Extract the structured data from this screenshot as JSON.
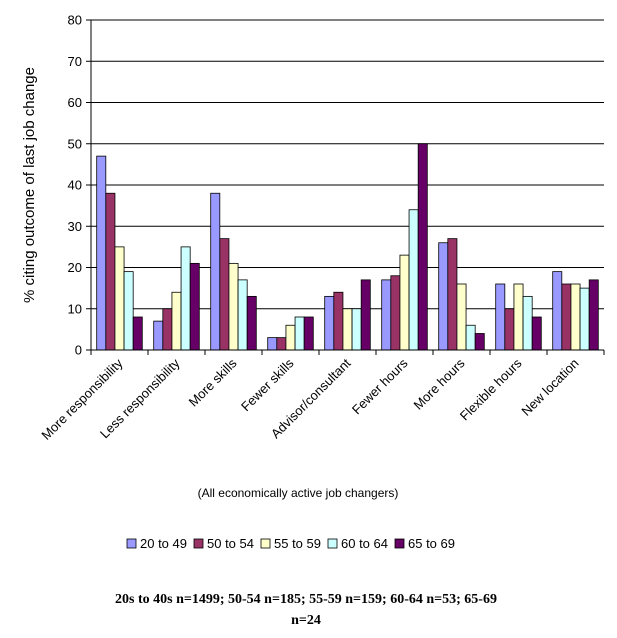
{
  "chart_data": {
    "type": "bar",
    "title": "",
    "xlabel": "(All economically active job changers)",
    "ylabel": "% citing outcome of last job change",
    "ylim": [
      0,
      80
    ],
    "yticks": [
      "0",
      "10",
      "20",
      "30",
      "40",
      "50",
      "60",
      "70",
      "80"
    ],
    "grid": true,
    "legend_position": "bottom",
    "categories": [
      "More responsibility",
      "Less responsibility",
      "More skills",
      "Fewer skills",
      "Advisor/consultant",
      "Fewer hours",
      "More hours",
      "Flexible hours",
      "New location"
    ],
    "series": [
      {
        "name": "20 to 49",
        "color": "#9999ff",
        "values": [
          47,
          7,
          38,
          3,
          13,
          17,
          26,
          16,
          19
        ]
      },
      {
        "name": "50 to 54",
        "color": "#993366",
        "values": [
          38,
          10,
          27,
          3,
          14,
          18,
          27,
          10,
          16
        ]
      },
      {
        "name": "55 to 59",
        "color": "#ffffcc",
        "values": [
          25,
          14,
          21,
          6,
          10,
          23,
          16,
          16,
          16
        ]
      },
      {
        "name": "60 to 64",
        "color": "#ccffff",
        "values": [
          19,
          25,
          17,
          8,
          10,
          34,
          6,
          13,
          15
        ]
      },
      {
        "name": "65 to 69",
        "color": "#660066",
        "values": [
          8,
          21,
          13,
          8,
          17,
          50,
          4,
          8,
          17
        ]
      }
    ],
    "footnote_lines": [
      "20s to 40s n=1499; 50-54 n=185; 55-59 n=159; 60-64 n=53; 65-69",
      "n=24"
    ]
  }
}
